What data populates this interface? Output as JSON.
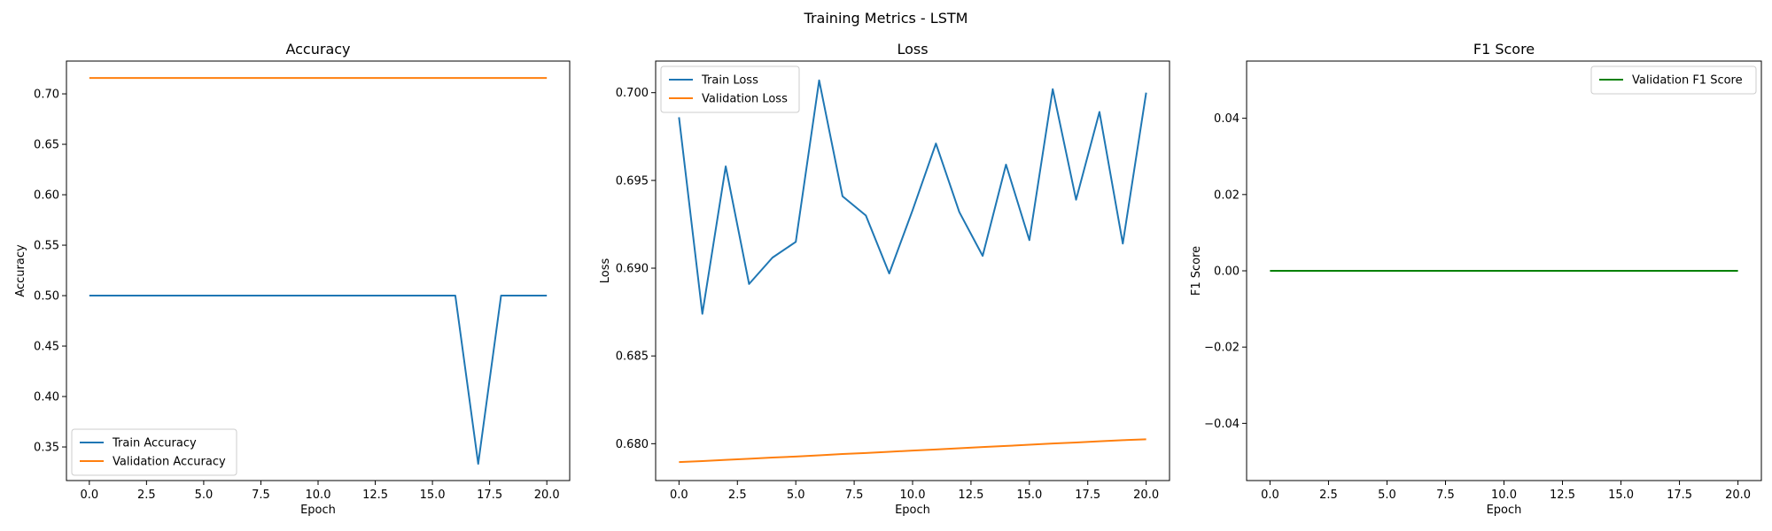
{
  "figure": {
    "title": "Training Metrics - LSTM"
  },
  "colors": {
    "train": "#1f77b4",
    "validation": "#ff7f0e",
    "f1": "#008000"
  },
  "chart_data": [
    {
      "type": "line",
      "title": "Accuracy",
      "xlabel": "Epoch",
      "ylabel": "Accuracy",
      "x": [
        0,
        1,
        2,
        3,
        4,
        5,
        6,
        7,
        8,
        9,
        10,
        11,
        12,
        13,
        14,
        15,
        16,
        17,
        18,
        19,
        20
      ],
      "xlim": [
        -1,
        21
      ],
      "ylim": [
        0.3167,
        0.7325
      ],
      "xticks": [
        0,
        2.5,
        5,
        7.5,
        10,
        12.5,
        15,
        17.5,
        20
      ],
      "xtick_labels": [
        "0.0",
        "2.5",
        "5.0",
        "7.5",
        "10.0",
        "12.5",
        "15.0",
        "17.5",
        "20.0"
      ],
      "yticks": [
        0.35,
        0.4,
        0.45,
        0.5,
        0.55,
        0.6,
        0.65,
        0.7
      ],
      "ytick_labels": [
        "0.35",
        "0.40",
        "0.45",
        "0.50",
        "0.55",
        "0.60",
        "0.65",
        "0.70"
      ],
      "legend": "lower-left",
      "grid": false,
      "series": [
        {
          "name": "Train Accuracy",
          "color": "#1f77b4",
          "values": [
            0.5,
            0.5,
            0.5,
            0.5,
            0.5,
            0.5,
            0.5,
            0.5,
            0.5,
            0.5,
            0.5,
            0.5,
            0.5,
            0.5,
            0.5,
            0.5,
            0.5,
            0.3333,
            0.5,
            0.5,
            0.5
          ]
        },
        {
          "name": "Validation Accuracy",
          "color": "#ff7f0e",
          "values": [
            0.7157,
            0.7157,
            0.7157,
            0.7157,
            0.7157,
            0.7157,
            0.7157,
            0.7157,
            0.7157,
            0.7157,
            0.7157,
            0.7157,
            0.7157,
            0.7157,
            0.7157,
            0.7157,
            0.7157,
            0.7157,
            0.7157,
            0.7157,
            0.7157
          ]
        }
      ]
    },
    {
      "type": "line",
      "title": "Loss",
      "xlabel": "Epoch",
      "ylabel": "Loss",
      "x": [
        0,
        1,
        2,
        3,
        4,
        5,
        6,
        7,
        8,
        9,
        10,
        11,
        12,
        13,
        14,
        15,
        16,
        17,
        18,
        19,
        20
      ],
      "xlim": [
        -1,
        21
      ],
      "ylim": [
        0.6779,
        0.7018
      ],
      "xticks": [
        0,
        2.5,
        5,
        7.5,
        10,
        12.5,
        15,
        17.5,
        20
      ],
      "xtick_labels": [
        "0.0",
        "2.5",
        "5.0",
        "7.5",
        "10.0",
        "12.5",
        "15.0",
        "17.5",
        "20.0"
      ],
      "yticks": [
        0.68,
        0.685,
        0.69,
        0.695,
        0.7
      ],
      "ytick_labels": [
        "0.680",
        "0.685",
        "0.690",
        "0.695",
        "0.700"
      ],
      "legend": "upper-left",
      "grid": false,
      "series": [
        {
          "name": "Train Loss",
          "color": "#1f77b4",
          "values": [
            0.6986,
            0.6874,
            0.6958,
            0.6891,
            0.6906,
            0.6915,
            0.7007,
            0.6941,
            0.693,
            0.6897,
            0.6933,
            0.6971,
            0.6932,
            0.6907,
            0.6959,
            0.6916,
            0.7002,
            0.6939,
            0.6989,
            0.6914,
            0.7
          ]
        },
        {
          "name": "Validation Loss",
          "color": "#ff7f0e",
          "values": [
            0.67895,
            0.67901,
            0.67908,
            0.67914,
            0.67921,
            0.67927,
            0.67934,
            0.67941,
            0.67947,
            0.67954,
            0.67961,
            0.67967,
            0.67974,
            0.67981,
            0.67987,
            0.67994,
            0.68001,
            0.68007,
            0.68014,
            0.6802,
            0.68025
          ]
        }
      ]
    },
    {
      "type": "line",
      "title": "F1 Score",
      "xlabel": "Epoch",
      "ylabel": "F1 Score",
      "x": [
        0,
        1,
        2,
        3,
        4,
        5,
        6,
        7,
        8,
        9,
        10,
        11,
        12,
        13,
        14,
        15,
        16,
        17,
        18,
        19,
        20
      ],
      "xlim": [
        -1,
        21
      ],
      "ylim": [
        -0.055,
        0.055
      ],
      "xticks": [
        0,
        2.5,
        5,
        7.5,
        10,
        12.5,
        15,
        17.5,
        20
      ],
      "xtick_labels": [
        "0.0",
        "2.5",
        "5.0",
        "7.5",
        "10.0",
        "12.5",
        "15.0",
        "17.5",
        "20.0"
      ],
      "yticks": [
        -0.04,
        -0.02,
        0.0,
        0.02,
        0.04
      ],
      "ytick_labels": [
        "−0.04",
        "−0.02",
        "0.00",
        "0.02",
        "0.04"
      ],
      "legend": "upper-right",
      "grid": false,
      "series": [
        {
          "name": "Validation F1 Score",
          "color": "#008000",
          "values": [
            0,
            0,
            0,
            0,
            0,
            0,
            0,
            0,
            0,
            0,
            0,
            0,
            0,
            0,
            0,
            0,
            0,
            0,
            0,
            0,
            0
          ]
        }
      ]
    }
  ]
}
